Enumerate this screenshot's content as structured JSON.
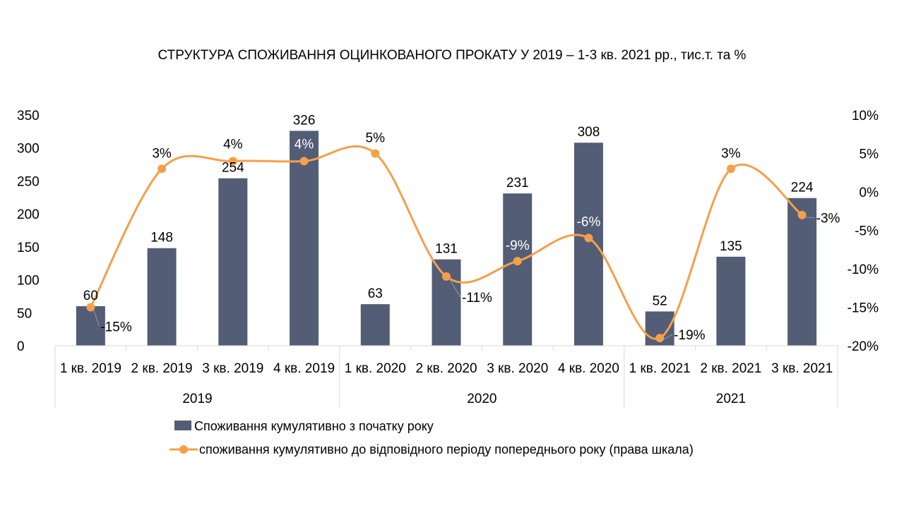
{
  "chart_data": {
    "type": "bar",
    "title": "СТРУКТУРА СПОЖИВАННЯ ОЦИНКОВАНОГО ПРОКАТУ У 2019 – 1-3 кв. 2021 рр., тис.т. та %",
    "categories": [
      "1 кв. 2019",
      "2 кв. 2019",
      "3 кв. 2019",
      "4 кв. 2019",
      "1 кв. 2020",
      "2 кв. 2020",
      "3 кв. 2020",
      "4 кв. 2020",
      "1 кв. 2021",
      "2 кв. 2021",
      "3 кв. 2021"
    ],
    "groups": [
      {
        "label": "2019",
        "count": 4
      },
      {
        "label": "2020",
        "count": 4
      },
      {
        "label": "2021",
        "count": 3
      }
    ],
    "series": [
      {
        "name": "Споживання кумулятивно з початку року",
        "type": "bar",
        "axis": "left",
        "values": [
          60,
          148,
          254,
          326,
          63,
          131,
          231,
          308,
          52,
          135,
          224
        ],
        "color": "#535d75"
      },
      {
        "name": "споживання кумулятивно до відповідного періоду попереднього року (права шкала)",
        "type": "line",
        "axis": "right",
        "values": [
          -15,
          3,
          4,
          4,
          5,
          -11,
          -9,
          -6,
          -19,
          3,
          -3
        ],
        "labels": [
          "-15%",
          "3%",
          "4%",
          "4%",
          "5%",
          "-11%",
          "-9%",
          "-6%",
          "-19%",
          "3%",
          "-3%"
        ],
        "color": "#f4a04a"
      }
    ],
    "left_axis": {
      "min": 0,
      "max": 350,
      "step": 50,
      "ticks": [
        "0",
        "50",
        "100",
        "150",
        "200",
        "250",
        "300",
        "350"
      ]
    },
    "right_axis": {
      "min": -20,
      "max": 10,
      "step": 5,
      "ticks": [
        "-20%",
        "-15%",
        "-10%",
        "-5%",
        "0%",
        "5%",
        "10%"
      ]
    },
    "grid": false,
    "legend_position": "bottom"
  }
}
